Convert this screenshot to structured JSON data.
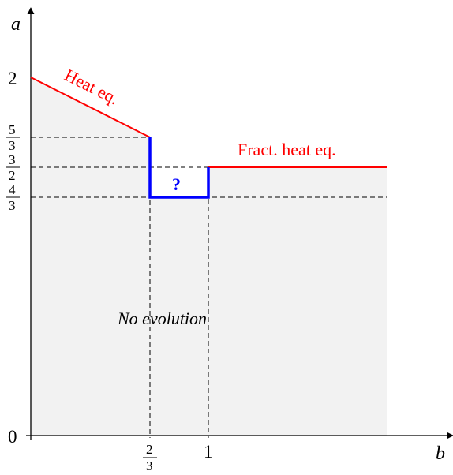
{
  "axes": {
    "x_label": "b",
    "y_label": "a",
    "origin_label": "0",
    "y_tick_2": "2",
    "x_tick_1": "1",
    "y_frac_5_3": {
      "num": "5",
      "den": "3"
    },
    "y_frac_3_2": {
      "num": "3",
      "den": "2"
    },
    "y_frac_4_3": {
      "num": "4",
      "den": "3"
    },
    "x_frac_2_3": {
      "num": "2",
      "den": "3"
    }
  },
  "labels": {
    "heat_eq": "Heat eq.",
    "fract_heat_eq": "Fract. heat eq.",
    "no_evolution": "No evolution",
    "unknown": "?"
  },
  "colors": {
    "red_curve": "#ff0000",
    "blue_curve": "#0000ff",
    "region_fill": "#f2f2f2",
    "axis": "#000000"
  }
}
